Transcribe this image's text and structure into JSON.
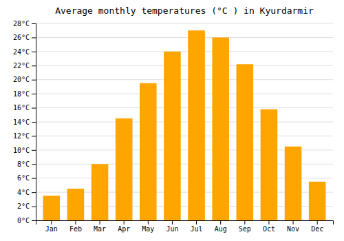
{
  "chart_data": {
    "type": "bar",
    "title": "Average monthly temperatures (°C ) in Kyurdarmir",
    "categories": [
      "Jan",
      "Feb",
      "Mar",
      "Apr",
      "May",
      "Jun",
      "Jul",
      "Aug",
      "Sep",
      "Oct",
      "Nov",
      "Dec"
    ],
    "values": [
      3.5,
      4.5,
      8.0,
      14.5,
      19.5,
      24.0,
      27.0,
      26.0,
      22.2,
      15.8,
      10.5,
      5.5
    ],
    "color": "#FFA500",
    "ylim": [
      0,
      28
    ],
    "yticks": [
      {
        "value": 0,
        "label": "0°C"
      },
      {
        "value": 2,
        "label": "2°C"
      },
      {
        "value": 4,
        "label": "4°C"
      },
      {
        "value": 6,
        "label": "6°C"
      },
      {
        "value": 8,
        "label": "8°C"
      },
      {
        "value": 10,
        "label": "10°C"
      },
      {
        "value": 12,
        "label": "12°C"
      },
      {
        "value": 14,
        "label": "14°C"
      },
      {
        "value": 16,
        "label": "16°C"
      },
      {
        "value": 18,
        "label": "18°C"
      },
      {
        "value": 20,
        "label": "20°C"
      },
      {
        "value": 22,
        "label": "22°C"
      },
      {
        "value": 24,
        "label": "24°C"
      },
      {
        "value": 26,
        "label": "26°C"
      },
      {
        "value": 28,
        "label": "28°C"
      }
    ],
    "grid": true
  }
}
